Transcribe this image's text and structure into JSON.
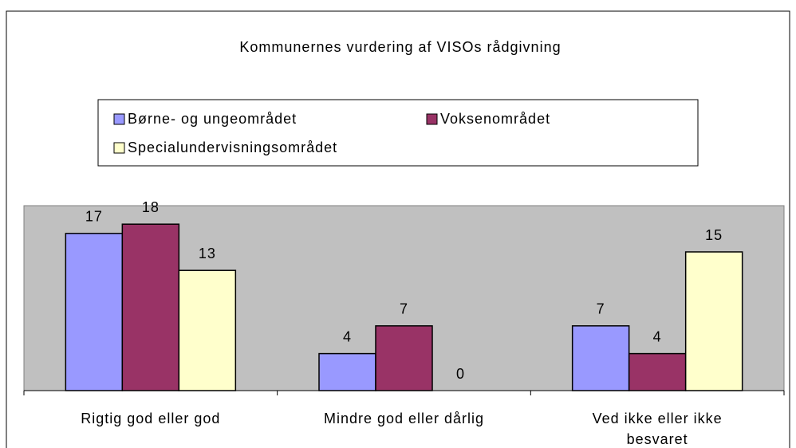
{
  "chart_data": {
    "type": "bar",
    "title": "Kommunernes vurdering af VISOs rådgivning",
    "categories": [
      "Rigtig god eller god",
      "Mindre god eller dårlig",
      "Ved ikke eller ikke besvaret"
    ],
    "series": [
      {
        "name": "Børne- og ungeområdet",
        "color": "#9999ff",
        "values": [
          17,
          4,
          7
        ]
      },
      {
        "name": "Voksenområdet",
        "color": "#993366",
        "values": [
          18,
          7,
          4
        ]
      },
      {
        "name": "Specialundervisningsområdet",
        "color": "#ffffcc",
        "values": [
          13,
          0,
          15
        ]
      }
    ],
    "ylim": [
      0,
      20
    ]
  }
}
